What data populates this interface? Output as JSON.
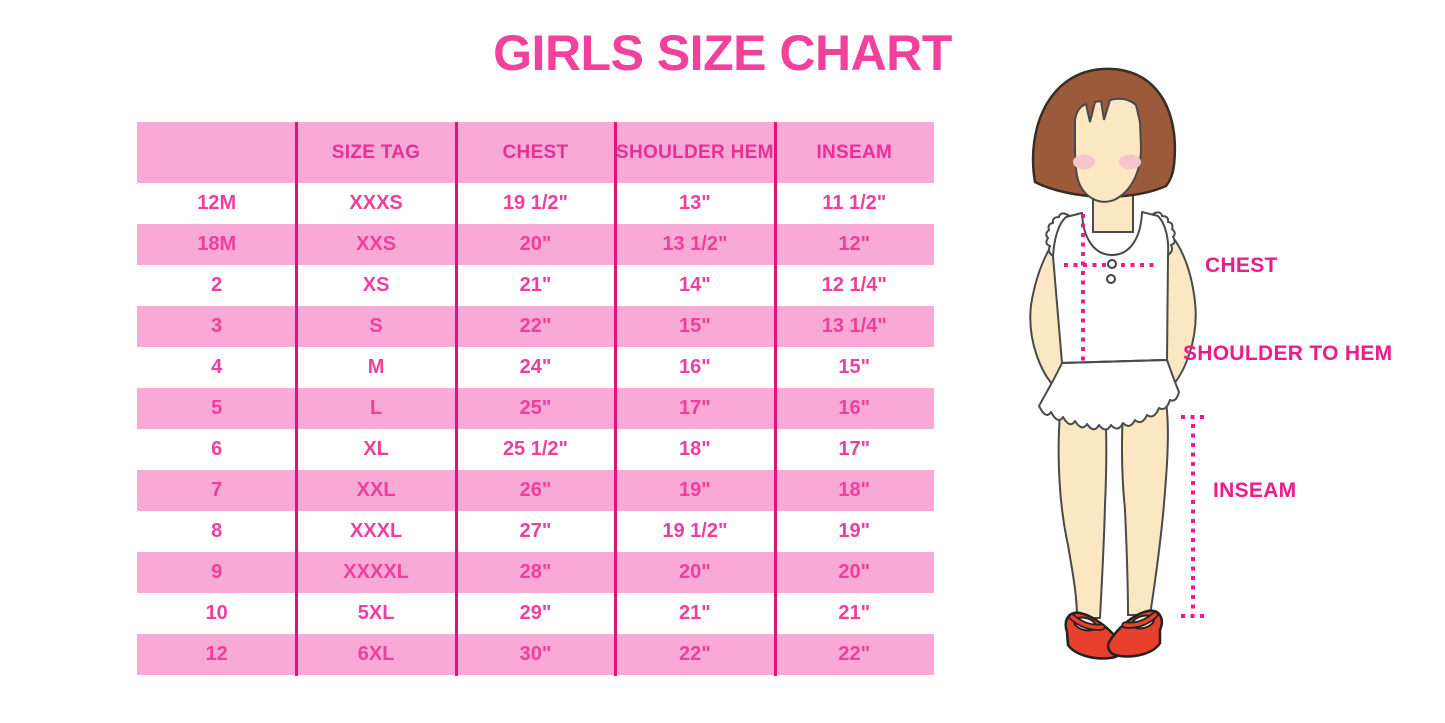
{
  "page": {
    "title": "GIRLS SIZE CHART",
    "title_color": "#F2419C",
    "background": "#FFFFFF"
  },
  "table": {
    "columns": [
      "",
      "SIZE TAG",
      "CHEST",
      "SHOULDER HEM",
      "INSEAM"
    ],
    "rows": [
      [
        "12M",
        "XXXS",
        "19 1/2\"",
        "13\"",
        "11 1/2\""
      ],
      [
        "18M",
        "XXS",
        "20\"",
        "13 1/2\"",
        "12\""
      ],
      [
        "2",
        "XS",
        "21\"",
        "14\"",
        "12 1/4\""
      ],
      [
        "3",
        "S",
        "22\"",
        "15\"",
        "13 1/4\""
      ],
      [
        "4",
        "M",
        "24\"",
        "16\"",
        "15\""
      ],
      [
        "5",
        "L",
        "25\"",
        "17\"",
        "16\""
      ],
      [
        "6",
        "XL",
        "25 1/2\"",
        "18\"",
        "17\""
      ],
      [
        "7",
        "XXL",
        "26\"",
        "19\"",
        "18\""
      ],
      [
        "8",
        "XXXL",
        "27\"",
        "19 1/2\"",
        "19\""
      ],
      [
        "9",
        "XXXXL",
        "28\"",
        "20\"",
        "20\""
      ],
      [
        "10",
        "5XL",
        "29\"",
        "21\"",
        "21\""
      ],
      [
        "12",
        "6XL",
        "30\"",
        "22\"",
        "22\""
      ]
    ],
    "colors": {
      "header_bg": "#F9A9D6",
      "alt_row_bg": "#F9A9D6",
      "divider": "#DE1280",
      "header_text": "#E72F96",
      "row_text": "#EF3E9C"
    }
  },
  "diagram": {
    "labels": {
      "chest": "CHEST",
      "shoulder_to_hem": "SHOULDER TO HEM",
      "inseam": "INSEAM"
    },
    "colors": {
      "label": "#EC1B8E",
      "dotted_line": "#EC1B8E",
      "hair": "#9B5A3A",
      "skin": "#FBE7C2",
      "blush": "#F4C6CC",
      "shoe": "#E8402C",
      "garment": "#FFFFFF"
    }
  }
}
